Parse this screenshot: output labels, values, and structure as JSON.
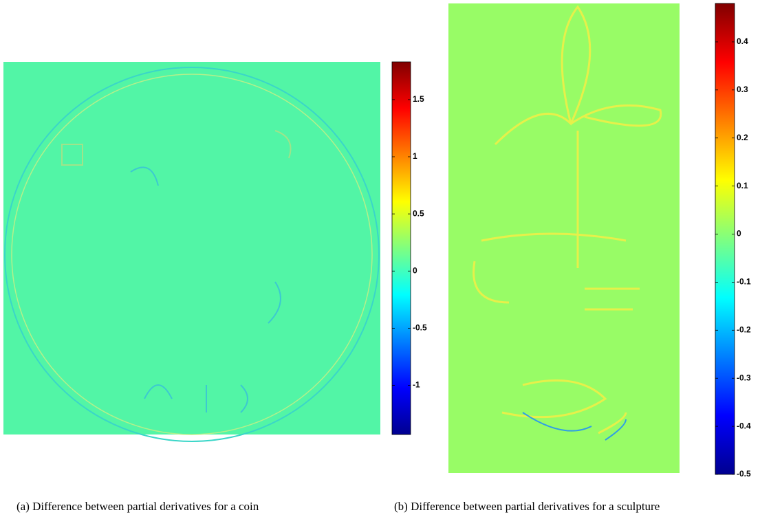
{
  "chart_data": [
    {
      "type": "heatmap",
      "caption": "(a) Difference between partial derivatives for a coin",
      "colorbar": {
        "ylim": [
          -1.43,
          1.83
        ],
        "yticks": [
          -1,
          -0.5,
          0,
          0.5,
          1,
          1.5
        ]
      }
    },
    {
      "type": "heatmap",
      "caption": "(b) Difference between partial derivatives for a sculpture",
      "colorbar": {
        "ylim": [
          -0.5,
          0.48
        ],
        "yticks": [
          -0.5,
          -0.4,
          -0.3,
          -0.2,
          -0.1,
          0,
          0.1,
          0.2,
          0.3,
          0.4
        ]
      }
    }
  ]
}
